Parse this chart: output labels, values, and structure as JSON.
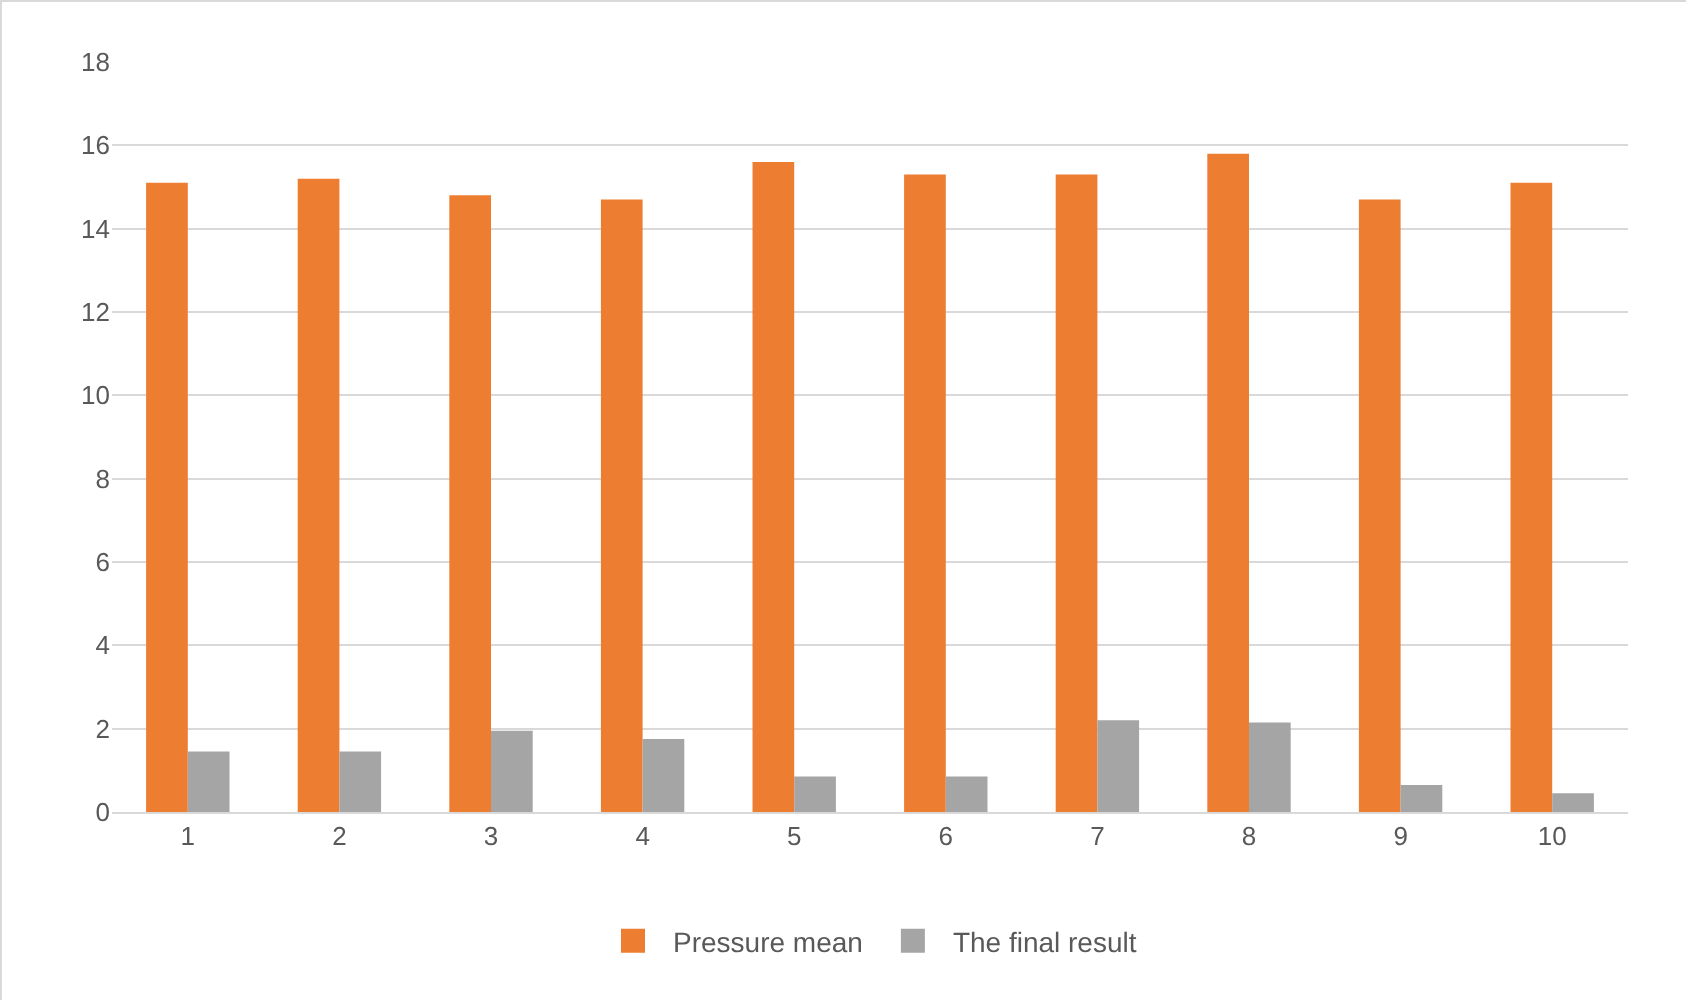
{
  "chart_data": {
    "type": "bar",
    "categories": [
      "1",
      "2",
      "3",
      "4",
      "5",
      "6",
      "7",
      "8",
      "9",
      "10"
    ],
    "series": [
      {
        "name": "Pressure mean",
        "color": "#ed7d31",
        "values": [
          15.1,
          15.2,
          14.8,
          14.7,
          15.6,
          15.3,
          15.3,
          15.8,
          14.7,
          15.1
        ]
      },
      {
        "name": "The final result",
        "color": "#a5a5a5",
        "values": [
          1.45,
          1.45,
          1.95,
          1.75,
          0.85,
          0.85,
          2.2,
          2.15,
          0.65,
          0.45
        ]
      }
    ],
    "ylim": [
      0,
      18
    ],
    "yticks": [
      0,
      2,
      4,
      6,
      8,
      10,
      12,
      14,
      16,
      18
    ],
    "grid": "y",
    "legend": "bottom"
  }
}
